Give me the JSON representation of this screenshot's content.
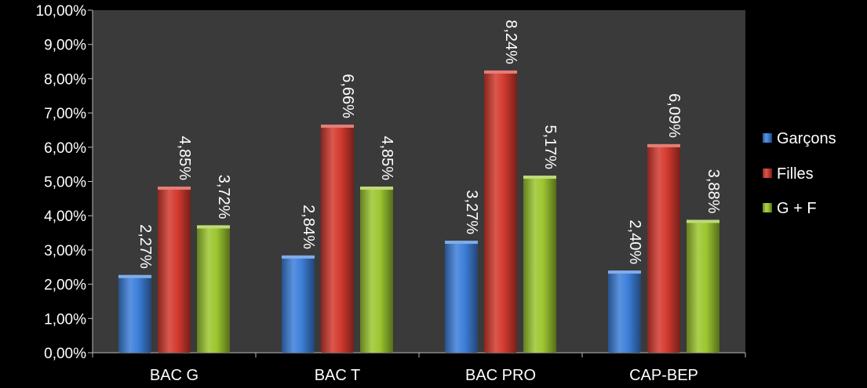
{
  "chart_data": {
    "type": "bar",
    "categories": [
      "BAC G",
      "BAC T",
      "BAC PRO",
      "CAP-BEP"
    ],
    "series": [
      {
        "name": "Garçons",
        "values": [
          2.27,
          2.84,
          3.27,
          2.4
        ],
        "labels": [
          "2,27%",
          "2,84%",
          "3,27%",
          "2,40%"
        ],
        "color": "#3d7fd9"
      },
      {
        "name": "Filles",
        "values": [
          4.85,
          6.66,
          8.24,
          6.09
        ],
        "labels": [
          "4,85%",
          "6,66%",
          "8,24%",
          "6,09%"
        ],
        "color": "#d33a2f"
      },
      {
        "name": "G + F",
        "values": [
          3.72,
          4.85,
          5.17,
          3.88
        ],
        "labels": [
          "3,72%",
          "4,85%",
          "5,17%",
          "3,88%"
        ],
        "color": "#9cc630"
      }
    ],
    "ylim": [
      0,
      10
    ],
    "yticks": [
      "0,00%",
      "1,00%",
      "2,00%",
      "3,00%",
      "4,00%",
      "5,00%",
      "6,00%",
      "7,00%",
      "8,00%",
      "9,00%",
      "10,00%"
    ],
    "legend_position": "right",
    "grid": false,
    "plot_background": "#3a3a3a",
    "page_background": "#000000",
    "text_color": "#ffffff"
  }
}
